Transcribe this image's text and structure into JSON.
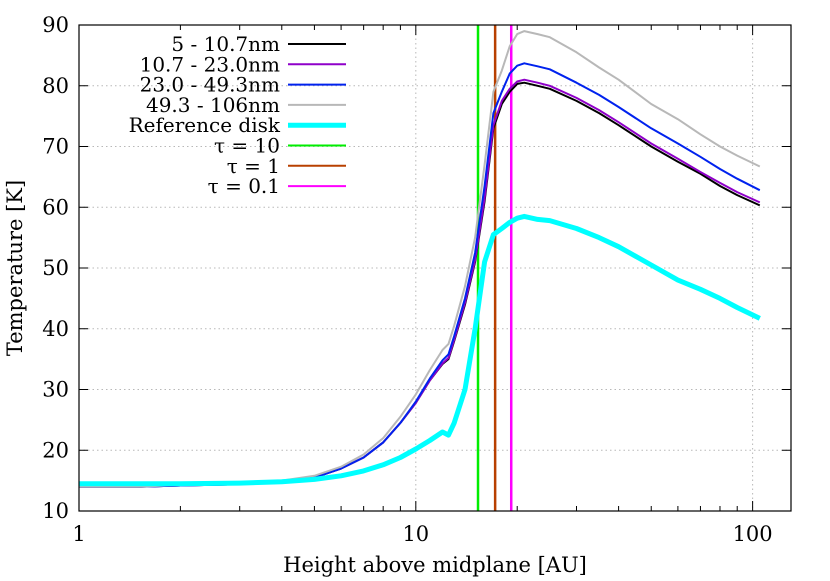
{
  "chart_data": {
    "type": "line",
    "xlabel": "Height above midplane [AU]",
    "ylabel": "Temperature [K]",
    "xscale": "log",
    "xlim": [
      1,
      130
    ],
    "ylim": [
      10,
      90
    ],
    "xticks": [
      1,
      10,
      100
    ],
    "yticks": [
      10,
      20,
      30,
      40,
      50,
      60,
      70,
      80,
      90
    ],
    "grid": true,
    "legend_position": "top-left",
    "series": [
      {
        "name": "5 - 10.7nm",
        "color": "#000000",
        "linewidth": 2,
        "x": [
          1,
          1.5,
          2,
          3,
          4,
          5,
          6,
          7,
          8,
          9,
          10,
          11,
          12,
          12.5,
          13,
          14,
          15,
          16,
          17,
          18,
          19,
          20,
          21,
          23,
          25,
          30,
          35,
          40,
          50,
          60,
          70,
          80,
          90,
          105
        ],
        "y": [
          14,
          14,
          14.2,
          14.4,
          14.8,
          15.5,
          17,
          18.8,
          21.3,
          24.5,
          27.8,
          31.5,
          34.2,
          35,
          38,
          44,
          51,
          61,
          73,
          77,
          79,
          80.3,
          80.5,
          80,
          79.5,
          77.5,
          75.5,
          73.5,
          70,
          67.5,
          65.5,
          63.5,
          62,
          60.3
        ]
      },
      {
        "name": "10.7 - 23.0nm",
        "color": "#8f00c9",
        "linewidth": 2,
        "x": [
          1,
          1.5,
          2,
          3,
          4,
          5,
          6,
          7,
          8,
          9,
          10,
          11,
          12,
          12.5,
          13,
          14,
          15,
          16,
          17,
          18,
          19,
          20,
          21,
          23,
          25,
          30,
          35,
          40,
          50,
          60,
          70,
          80,
          90,
          105
        ],
        "y": [
          14,
          14,
          14.2,
          14.4,
          14.8,
          15.5,
          17,
          18.8,
          21.3,
          24.5,
          27.8,
          31.5,
          34.3,
          35.2,
          38.2,
          44.3,
          51.3,
          61.5,
          73.5,
          77.5,
          79.5,
          80.7,
          81,
          80.5,
          80,
          78,
          76,
          74,
          70.5,
          68,
          65.8,
          64,
          62.5,
          60.8
        ]
      },
      {
        "name": "23.0 - 49.3nm",
        "color": "#0022ee",
        "linewidth": 2,
        "x": [
          1,
          1.5,
          2,
          3,
          4,
          5,
          6,
          7,
          8,
          9,
          10,
          11,
          12,
          12.5,
          13,
          14,
          15,
          16,
          17,
          18,
          19,
          20,
          21,
          23,
          25,
          30,
          35,
          40,
          50,
          60,
          70,
          80,
          90,
          105
        ],
        "y": [
          14,
          14,
          14.2,
          14.4,
          14.8,
          15.5,
          17,
          18.8,
          21.3,
          24.5,
          28,
          31.8,
          34.8,
          35.8,
          38.8,
          45,
          52.5,
          63.5,
          75.5,
          79,
          82,
          83.3,
          83.7,
          83.2,
          82.7,
          80.5,
          78.5,
          76.5,
          73,
          70.5,
          68.3,
          66.3,
          64.7,
          62.8
        ]
      },
      {
        "name": "49.3 - 106nm",
        "color": "#b8b8b8",
        "linewidth": 2,
        "x": [
          1,
          1.5,
          2,
          3,
          4,
          5,
          6,
          7,
          8,
          9,
          10,
          11,
          12,
          12.5,
          13,
          14,
          15,
          16,
          17,
          18,
          19,
          20,
          21,
          23,
          25,
          30,
          35,
          40,
          50,
          60,
          70,
          80,
          90,
          105
        ],
        "y": [
          14,
          14,
          14.3,
          14.5,
          15,
          15.8,
          17.3,
          19.3,
          22,
          25.5,
          29.2,
          33.2,
          36.5,
          37.5,
          40.5,
          47,
          55,
          67,
          79,
          82.5,
          86.5,
          88.5,
          89,
          88.5,
          88,
          85.5,
          83,
          81,
          77,
          74.5,
          72,
          70,
          68.5,
          66.7
        ]
      },
      {
        "name": "Reference disk",
        "color": "#00ffff",
        "linewidth": 5,
        "x": [
          1,
          1.5,
          2,
          3,
          4,
          5,
          6,
          7,
          8,
          9,
          10,
          11,
          12,
          12.5,
          13,
          14,
          15,
          16,
          17,
          18,
          19,
          20,
          21,
          23,
          25,
          30,
          35,
          40,
          50,
          60,
          70,
          80,
          90,
          105
        ],
        "y": [
          14.5,
          14.5,
          14.5,
          14.6,
          14.8,
          15.2,
          15.8,
          16.6,
          17.6,
          18.8,
          20.2,
          21.6,
          23,
          22.5,
          24.5,
          30,
          40,
          51,
          55.5,
          56.5,
          57.5,
          58.2,
          58.5,
          58,
          57.8,
          56.5,
          55,
          53.5,
          50.5,
          48,
          46.5,
          45,
          43.5,
          41.7
        ]
      }
    ],
    "vlines": [
      {
        "name": "τ = 10",
        "color": "#00ee00",
        "x": 15.3
      },
      {
        "name": "τ = 1",
        "color": "#b84000",
        "x": 17.2
      },
      {
        "name": "τ = 0.1",
        "color": "#ff00ff",
        "x": 19.2
      }
    ]
  }
}
